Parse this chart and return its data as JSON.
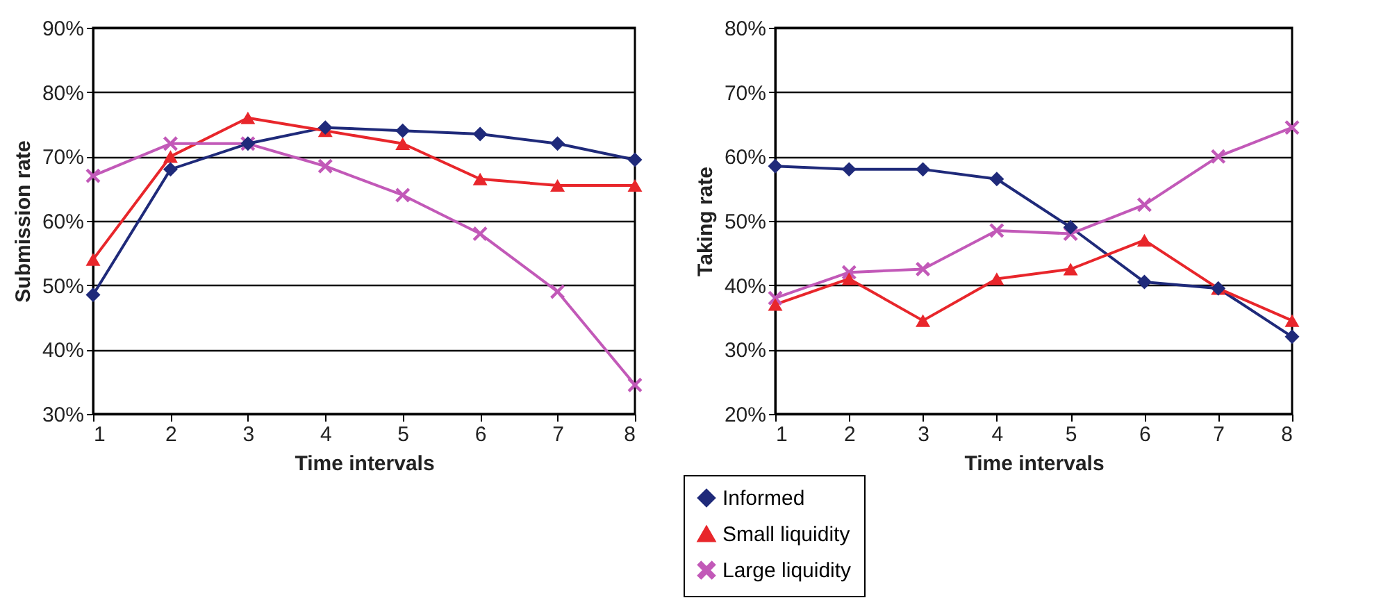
{
  "chart_data": [
    {
      "type": "line",
      "xlabel": "Time intervals",
      "ylabel": "Submission rate",
      "x": [
        1,
        2,
        3,
        4,
        5,
        6,
        7,
        8
      ],
      "xlim": [
        1,
        8
      ],
      "xticks": [
        1,
        2,
        3,
        4,
        5,
        6,
        7,
        8
      ],
      "ylim": [
        30,
        90
      ],
      "yticks": [
        {
          "value": 30,
          "label": "30%"
        },
        {
          "value": 40,
          "label": "40%"
        },
        {
          "value": 50,
          "label": "50%"
        },
        {
          "value": 60,
          "label": "60%"
        },
        {
          "value": 70,
          "label": "70%"
        },
        {
          "value": 80,
          "label": "80%"
        },
        {
          "value": 90,
          "label": "90%"
        }
      ],
      "grid": "y",
      "legend": "bottom right",
      "series": [
        {
          "name": "Informed",
          "color": "#1f2a7a",
          "marker": "diamond",
          "values": [
            48.5,
            68,
            72,
            74.5,
            74,
            73.5,
            72,
            69.5
          ]
        },
        {
          "name": "Small liquidity",
          "color": "#e8262b",
          "marker": "triangle",
          "values": [
            54,
            70,
            76,
            74,
            72,
            66.5,
            65.5,
            65.5
          ]
        },
        {
          "name": "Large liquidity",
          "color": "#c259b8",
          "marker": "cross",
          "values": [
            67,
            72,
            72,
            68.5,
            64,
            58,
            49,
            34.5
          ]
        }
      ]
    },
    {
      "type": "line",
      "xlabel": "Time intervals",
      "ylabel": "Taking rate",
      "x": [
        1,
        2,
        3,
        4,
        5,
        6,
        7,
        8
      ],
      "xlim": [
        1,
        8
      ],
      "xticks": [
        1,
        2,
        3,
        4,
        5,
        6,
        7,
        8
      ],
      "ylim": [
        20,
        80
      ],
      "yticks": [
        {
          "value": 20,
          "label": "20%"
        },
        {
          "value": 30,
          "label": "30%"
        },
        {
          "value": 40,
          "label": "40%"
        },
        {
          "value": 50,
          "label": "50%"
        },
        {
          "value": 60,
          "label": "60%"
        },
        {
          "value": 70,
          "label": "70%"
        },
        {
          "value": 80,
          "label": "80%"
        }
      ],
      "grid": "y",
      "legend": "bottom left",
      "series": [
        {
          "name": "Informed",
          "color": "#1f2a7a",
          "marker": "diamond",
          "values": [
            58.5,
            58,
            58,
            56.5,
            49,
            40.5,
            39.5,
            32
          ]
        },
        {
          "name": "Small liquidity",
          "color": "#e8262b",
          "marker": "triangle",
          "values": [
            37,
            41,
            34.5,
            41,
            42.5,
            47,
            39.5,
            34.5
          ]
        },
        {
          "name": "Large liquidity",
          "color": "#c259b8",
          "marker": "cross",
          "values": [
            38,
            42,
            42.5,
            48.5,
            48,
            52.5,
            60,
            64.5
          ]
        }
      ]
    }
  ]
}
